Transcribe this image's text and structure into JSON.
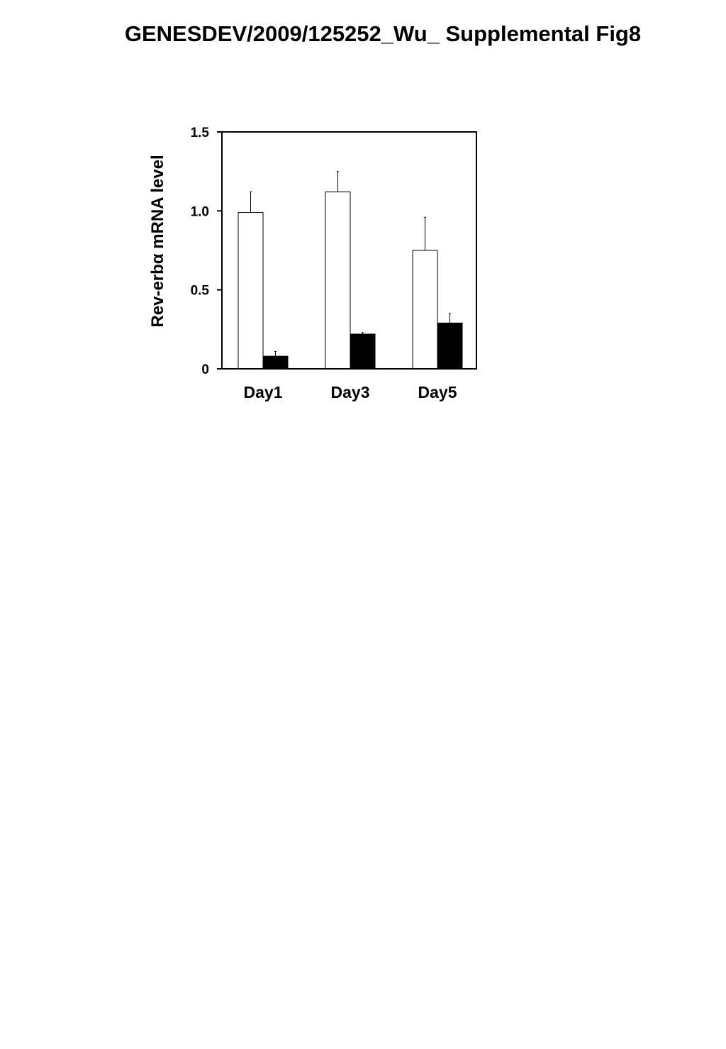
{
  "header": {
    "title": "GENESDEV/2009/125252_Wu_ Supplemental Fig8"
  },
  "chart_data": {
    "type": "bar",
    "title": "",
    "xlabel": "",
    "ylabel": "Rev-erbα mRNA level",
    "categories": [
      "Day1",
      "Day3",
      "Day5"
    ],
    "ylim": [
      0,
      1.5
    ],
    "yticks": [
      {
        "value": 0,
        "label": "0"
      },
      {
        "value": 0.5,
        "label": "0.5"
      },
      {
        "value": 1.0,
        "label": "1.0"
      },
      {
        "value": 1.5,
        "label": "1.5"
      }
    ],
    "grid": false,
    "legend": "none",
    "series": [
      {
        "fill": "#ffffff",
        "values": [
          0.99,
          1.12,
          0.75
        ],
        "errors": [
          0.13,
          0.13,
          0.21
        ]
      },
      {
        "fill": "#000000",
        "values": [
          0.08,
          0.22,
          0.29
        ],
        "errors": [
          0.03,
          0.01,
          0.06
        ]
      }
    ]
  }
}
